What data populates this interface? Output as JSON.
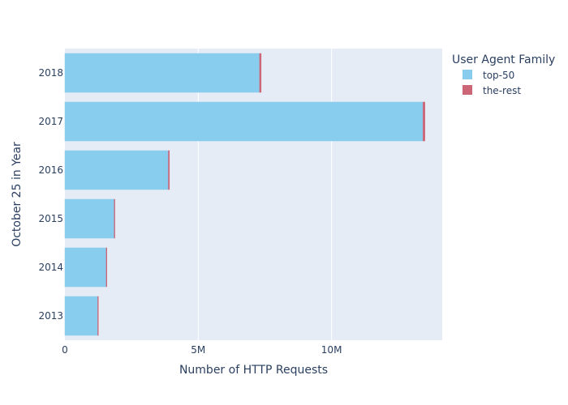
{
  "chart_data": {
    "type": "bar",
    "orientation": "horizontal",
    "barmode": "stack",
    "categories": [
      "2013",
      "2014",
      "2015",
      "2016",
      "2017",
      "2018"
    ],
    "series": [
      {
        "name": "top-50",
        "color": "#88CCEE",
        "values": [
          1230000,
          1550000,
          1850000,
          3880000,
          13430000,
          7300000
        ]
      },
      {
        "name": "the-rest",
        "color": "#CC6677",
        "values": [
          10000,
          15000,
          20000,
          40000,
          70000,
          60000
        ]
      }
    ],
    "xlabel": "Number of HTTP Requests",
    "ylabel": "October 25 in Year",
    "xlim": [
      0,
      14150000
    ],
    "xticks": [
      {
        "value": 0,
        "label": "0"
      },
      {
        "value": 5000000,
        "label": "5M"
      },
      {
        "value": 10000000,
        "label": "10M"
      }
    ],
    "legend": {
      "title": "User Agent Family",
      "position": "top-right"
    },
    "grid": true,
    "plot_background": "#E5ECF6"
  }
}
